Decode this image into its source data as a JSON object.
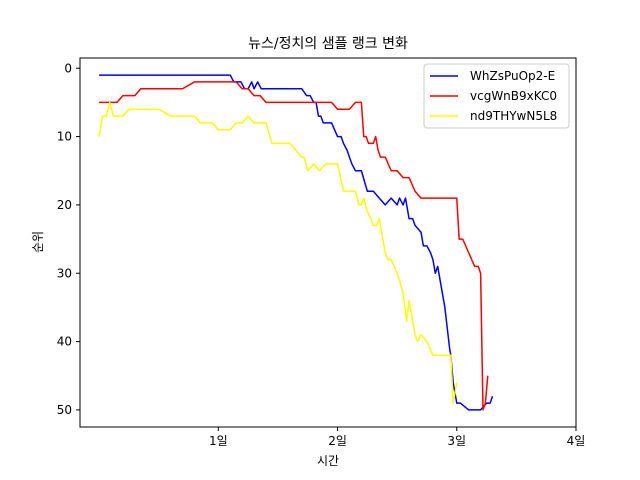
{
  "chart_data": {
    "type": "line",
    "title": "뉴스/정치의 샘플 랭크 변화",
    "xlabel": "시간",
    "ylabel": "순위",
    "xlim": [
      -0.16,
      4.0
    ],
    "ylim": [
      52.5,
      -1.5
    ],
    "y_inverted": true,
    "x_ticks": [
      1,
      2,
      3,
      4
    ],
    "x_tick_labels": [
      "1일",
      "2일",
      "3일",
      "4일"
    ],
    "y_ticks": [
      0,
      10,
      20,
      30,
      40,
      50
    ],
    "y_tick_labels": [
      "0",
      "10",
      "20",
      "30",
      "40",
      "50"
    ],
    "grid": false,
    "legend_position": "top-right",
    "series": [
      {
        "name": "WhZsPuOp2-E",
        "color": "#0000ff",
        "x": [
          0.0,
          1.1,
          1.13,
          1.16,
          1.19,
          1.22,
          1.25,
          1.28,
          1.3,
          1.33,
          1.36,
          1.5,
          1.6,
          1.7,
          1.74,
          1.77,
          1.8,
          1.82,
          1.84,
          1.86,
          1.88,
          1.9,
          1.95,
          2.0,
          2.03,
          2.05,
          2.08,
          2.1,
          2.12,
          2.15,
          2.2,
          2.25,
          2.3,
          2.35,
          2.4,
          2.45,
          2.5,
          2.52,
          2.55,
          2.57,
          2.6,
          2.63,
          2.65,
          2.7,
          2.72,
          2.75,
          2.78,
          2.8,
          2.82,
          2.84,
          2.86,
          2.88,
          2.9,
          2.92,
          2.94,
          2.95,
          2.97,
          3.0,
          3.03,
          3.1,
          3.15,
          3.2,
          3.25,
          3.28,
          3.3
        ],
        "y": [
          1,
          1,
          2,
          2,
          2,
          3,
          3,
          2,
          3,
          2,
          3,
          3,
          3,
          3,
          4,
          4,
          5,
          5,
          7,
          7,
          8,
          8,
          8,
          10,
          10,
          11,
          12,
          13,
          14,
          15,
          15,
          18,
          18,
          19,
          20,
          19,
          20,
          19,
          20,
          19,
          22,
          22,
          23,
          24,
          26,
          26,
          27,
          28,
          30,
          29,
          31,
          33,
          35,
          38,
          41,
          42,
          46,
          49,
          49,
          50,
          50,
          50,
          49,
          49,
          48
        ]
      },
      {
        "name": "vcgWnB9xKC0",
        "color": "#ff0000",
        "x": [
          0.0,
          0.1,
          0.15,
          0.2,
          0.25,
          0.3,
          0.35,
          0.4,
          0.5,
          0.6,
          0.7,
          0.8,
          0.9,
          1.0,
          1.1,
          1.15,
          1.2,
          1.25,
          1.3,
          1.35,
          1.4,
          1.5,
          1.6,
          1.7,
          1.8,
          1.9,
          1.95,
          2.0,
          2.05,
          2.1,
          2.15,
          2.2,
          2.22,
          2.24,
          2.26,
          2.28,
          2.3,
          2.32,
          2.34,
          2.36,
          2.4,
          2.45,
          2.5,
          2.55,
          2.6,
          2.65,
          2.7,
          2.75,
          2.8,
          2.85,
          2.9,
          2.95,
          3.0,
          3.02,
          3.05,
          3.1,
          3.15,
          3.18,
          3.2,
          3.22,
          3.24,
          3.26
        ],
        "y": [
          5,
          5,
          5,
          4,
          4,
          4,
          3,
          3,
          3,
          3,
          3,
          2,
          2,
          2,
          2,
          2,
          3,
          3,
          4,
          4,
          5,
          5,
          5,
          5,
          5,
          5,
          5,
          6,
          6,
          6,
          5,
          5,
          10,
          10,
          11,
          11,
          11,
          10,
          12,
          13,
          13,
          15,
          15,
          16,
          16,
          18,
          19,
          19,
          19,
          19,
          19,
          19,
          19,
          25,
          25,
          27,
          29,
          29,
          30,
          50,
          49,
          45
        ]
      },
      {
        "name": "nd9THYwN5L8",
        "color": "#ffff00",
        "x": [
          0.0,
          0.03,
          0.06,
          0.09,
          0.12,
          0.15,
          0.2,
          0.25,
          0.3,
          0.35,
          0.4,
          0.5,
          0.6,
          0.7,
          0.8,
          0.85,
          0.9,
          0.95,
          1.0,
          1.1,
          1.15,
          1.2,
          1.25,
          1.3,
          1.35,
          1.4,
          1.45,
          1.5,
          1.6,
          1.65,
          1.7,
          1.72,
          1.75,
          1.8,
          1.85,
          1.9,
          2.0,
          2.05,
          2.1,
          2.15,
          2.18,
          2.2,
          2.22,
          2.25,
          2.28,
          2.3,
          2.33,
          2.35,
          2.38,
          2.4,
          2.42,
          2.45,
          2.5,
          2.52,
          2.55,
          2.58,
          2.6,
          2.62,
          2.65,
          2.67,
          2.7,
          2.75,
          2.8,
          2.85,
          2.9,
          2.95,
          2.97,
          3.0
        ],
        "y": [
          10,
          7,
          7,
          5,
          7,
          7,
          7,
          6,
          6,
          6,
          6,
          6,
          7,
          7,
          7,
          8,
          8,
          8,
          9,
          9,
          8,
          8,
          7,
          8,
          8,
          8,
          11,
          11,
          11,
          12,
          13,
          13,
          15,
          14,
          15,
          14,
          14,
          18,
          18,
          18,
          20,
          20,
          19,
          21,
          22,
          23,
          23,
          22,
          25,
          27,
          28,
          28,
          30,
          31,
          33,
          37,
          34,
          36,
          39,
          40,
          39,
          40,
          42,
          42,
          42,
          42,
          49,
          46
        ]
      }
    ]
  }
}
